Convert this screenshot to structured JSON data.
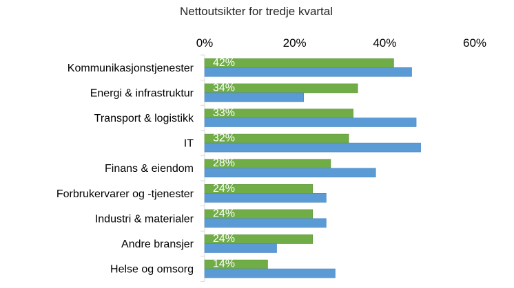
{
  "chart_data": {
    "type": "bar",
    "orientation": "horizontal",
    "title": "Nettoutsikter for tredje kvartal",
    "categories": [
      "Kommunikasjonstjenester",
      "Energi & infrastruktur",
      "Transport & logistikk",
      "IT",
      "Finans & eiendom",
      "Forbrukervarer og -tjenester",
      "Industri & materialer",
      "Andre bransjer",
      "Helse og omsorg"
    ],
    "series": [
      {
        "color": "#70AD47",
        "values": [
          42,
          34,
          33,
          32,
          28,
          24,
          24,
          24,
          14
        ],
        "data_labels": [
          "42%",
          "34%",
          "33%",
          "32%",
          "28%",
          "24%",
          "24%",
          "24%",
          "14%"
        ]
      },
      {
        "color": "#5B9BD5",
        "values": [
          46,
          22,
          47,
          48,
          38,
          27,
          27,
          16,
          29
        ]
      }
    ],
    "xlim": [
      0,
      60
    ],
    "x_ticks": [
      "0%",
      "20%",
      "40%",
      "60%"
    ],
    "x_axis_position": "top",
    "grid": false,
    "legend": "none"
  }
}
